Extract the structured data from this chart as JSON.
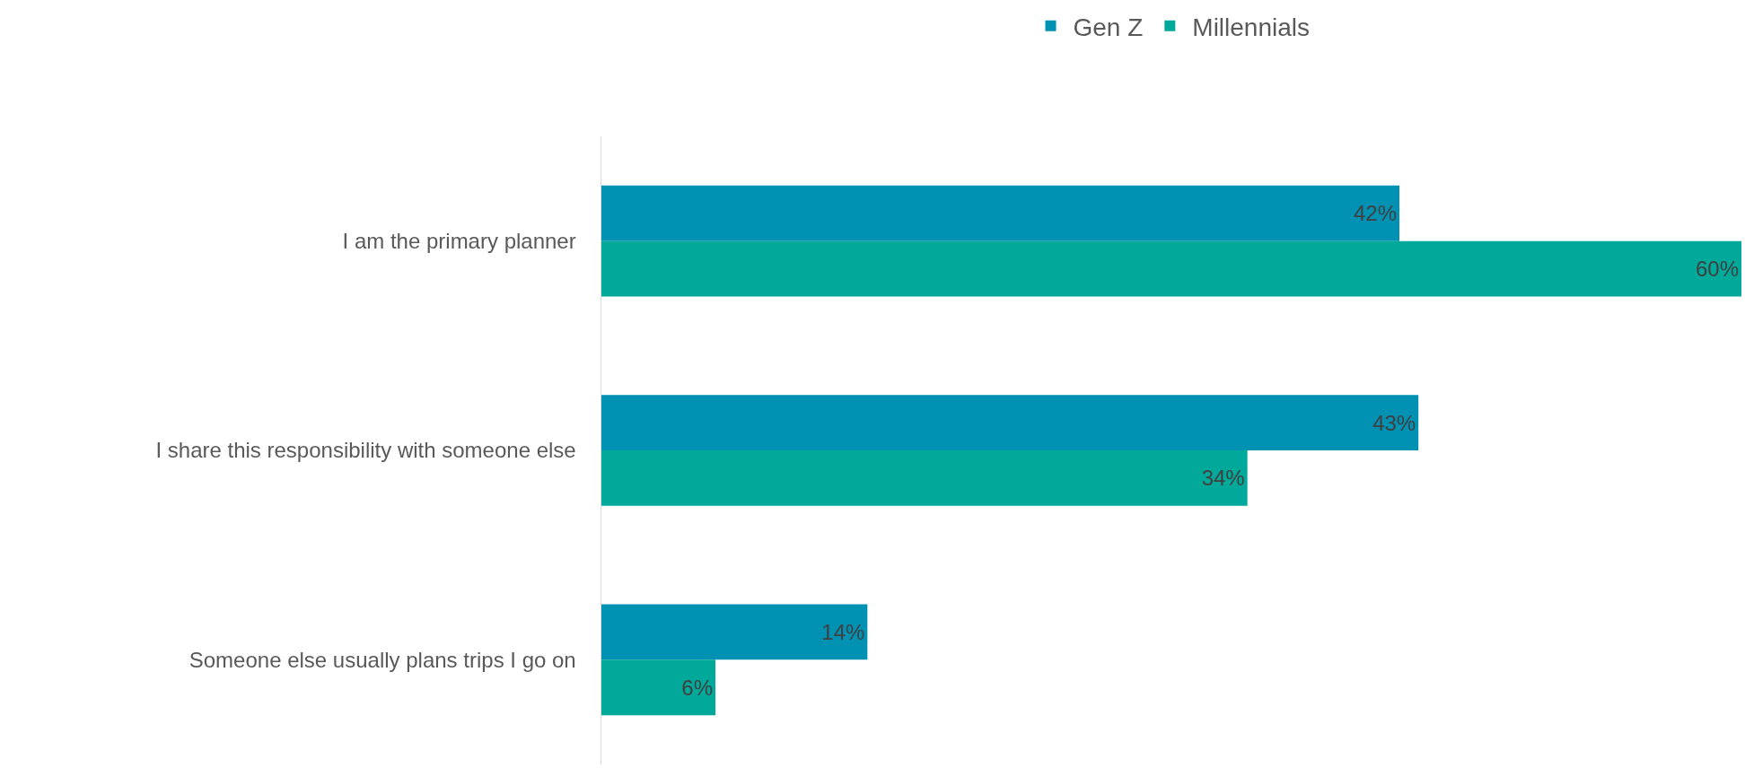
{
  "chart_data": {
    "type": "bar",
    "orientation": "horizontal",
    "categories": [
      "I am the primary planner",
      "I share this responsibility with someone else",
      "Someone else usually plans trips I go on"
    ],
    "series": [
      {
        "name": "Gen Z",
        "color": "#0091b3",
        "values": [
          42,
          43,
          14
        ],
        "value_labels": [
          "42%",
          "43%",
          "14%"
        ]
      },
      {
        "name": "Millennials",
        "color": "#00a99a",
        "values": [
          60,
          34,
          6
        ],
        "value_labels": [
          "60%",
          "34%",
          "6%"
        ]
      }
    ],
    "xlim": [
      0,
      60
    ],
    "legend": "top",
    "tick_labels": "y"
  }
}
